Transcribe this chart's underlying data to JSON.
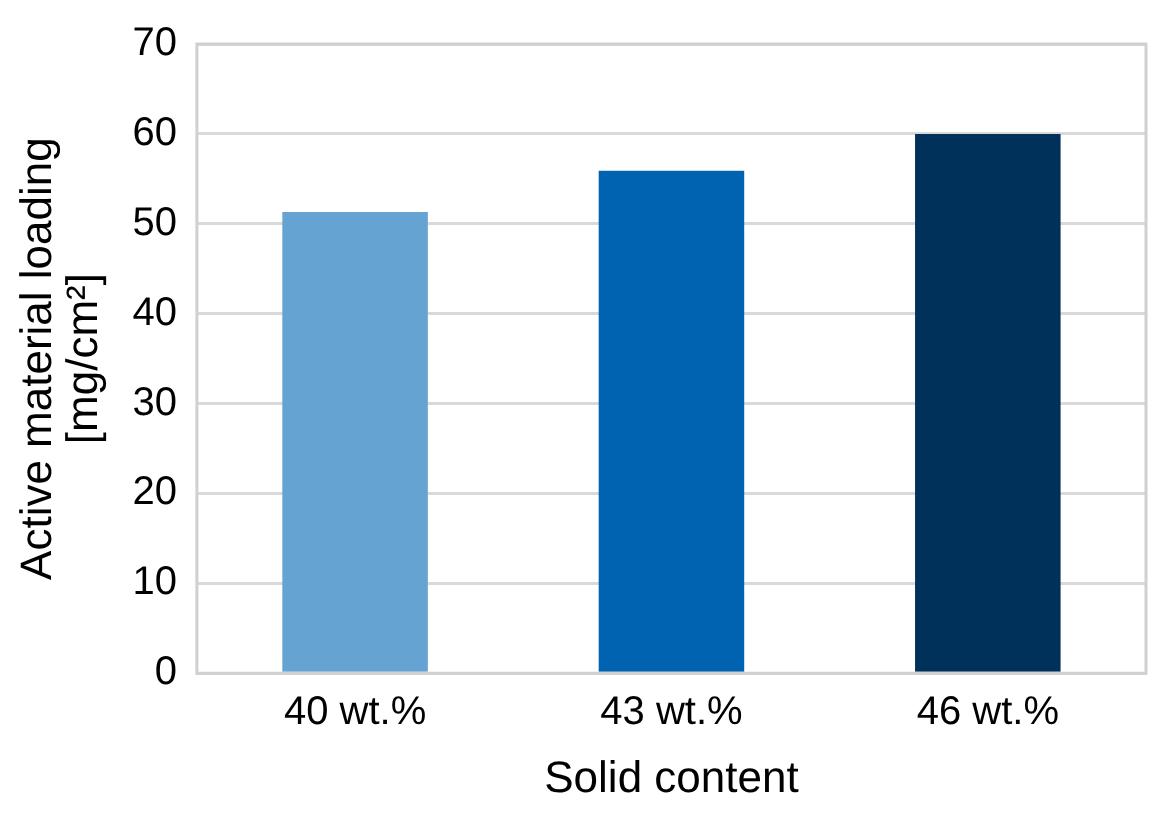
{
  "chart_data": {
    "type": "bar",
    "xlabel": "Solid content",
    "ylabel": "Active material loading [mg/cm²]",
    "categories": [
      "40 wt.%",
      "43 wt.%",
      "46 wt.%"
    ],
    "values": [
      51.3,
      55.9,
      60.0
    ],
    "colors": [
      "#65a3d3",
      "#0063b1",
      "#00315a"
    ],
    "ylim": [
      0,
      70
    ],
    "yticks": [
      0,
      10,
      20,
      30,
      40,
      50,
      60,
      70
    ],
    "grid": "y",
    "legend": false
  }
}
